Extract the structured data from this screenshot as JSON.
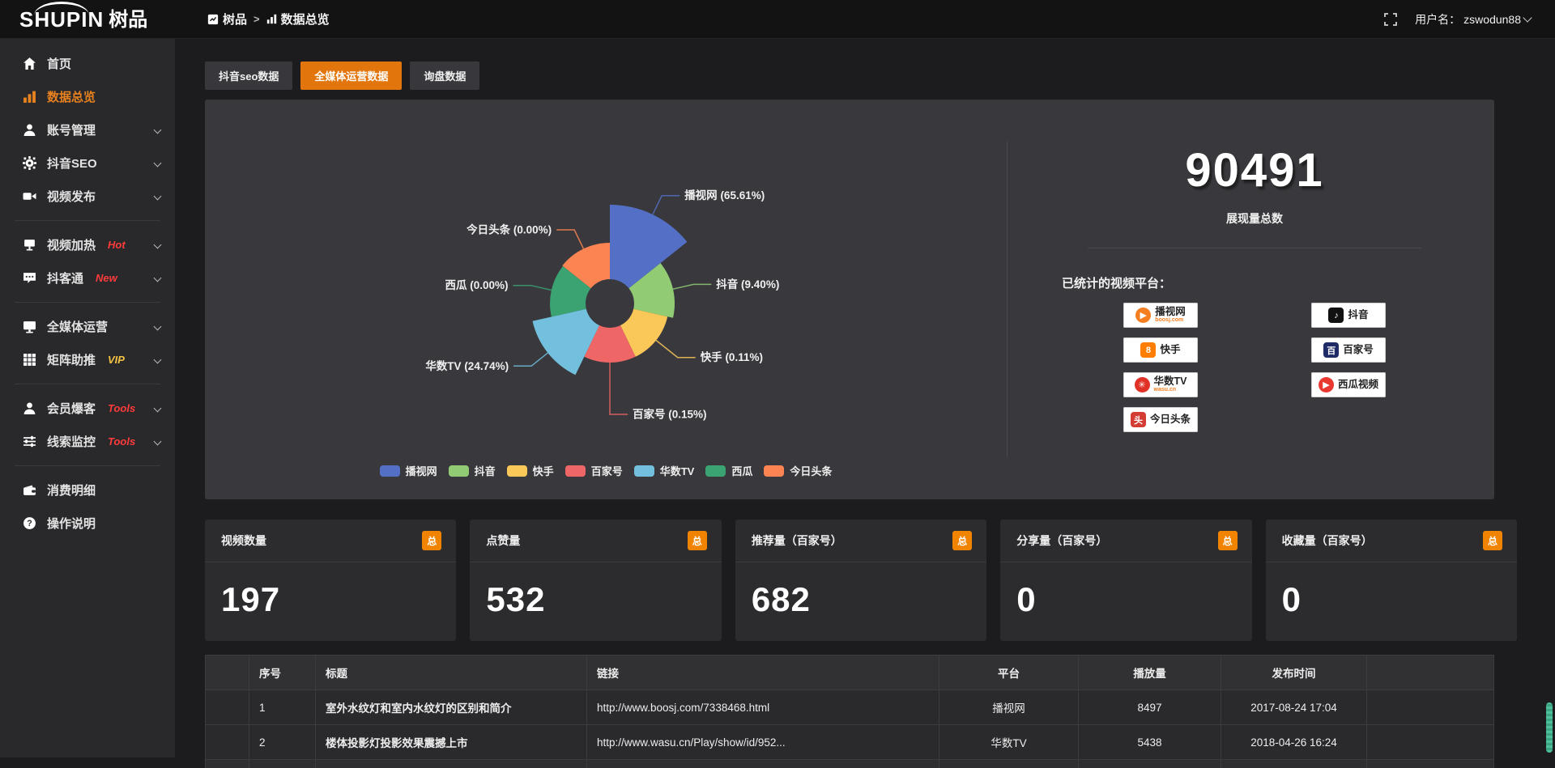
{
  "colors": {
    "accent_orange": "#e2760d",
    "badge_orange": "#f08300",
    "link_orange": "#ee7d1a",
    "hot_red": "#ff3b3b",
    "vip_yellow": "#f7c244",
    "panel_bg": "#39393d",
    "topbar_bg": "#131314",
    "sidebar_bg": "#29292c"
  },
  "topbar": {
    "logo_brand": "SHUPIN",
    "logo_cn": "树品",
    "breadcrumb": {
      "root": "树品",
      "separator": ">",
      "current": "数据总览"
    },
    "username_label": "用户名：",
    "username": "zswodun88"
  },
  "sidebar": {
    "items": [
      {
        "label": "首页",
        "icon": "home",
        "active": false,
        "chevron": false,
        "badge": ""
      },
      {
        "label": "数据总览",
        "icon": "chart",
        "active": true,
        "chevron": false,
        "badge": ""
      },
      {
        "label": "账号管理",
        "icon": "user",
        "active": false,
        "chevron": true,
        "badge": ""
      },
      {
        "label": "抖音SEO",
        "icon": "gear",
        "active": false,
        "chevron": true,
        "badge": ""
      },
      {
        "label": "视频发布",
        "icon": "camera",
        "active": false,
        "chevron": true,
        "badge": "",
        "divider_after": true
      },
      {
        "label": "视频加热",
        "icon": "heat",
        "active": false,
        "chevron": true,
        "badge": "Hot",
        "badge_color": "#ff3b3b"
      },
      {
        "label": "抖客通",
        "icon": "bubble",
        "active": false,
        "chevron": true,
        "badge": "New",
        "badge_color": "#ff3b3b",
        "divider_after": true
      },
      {
        "label": "全媒体运营",
        "icon": "monitor",
        "active": false,
        "chevron": true,
        "badge": ""
      },
      {
        "label": "矩阵助推",
        "icon": "grid",
        "active": false,
        "chevron": true,
        "badge": "VIP",
        "badge_color": "#f7c244",
        "divider_after": true
      },
      {
        "label": "会员爆客",
        "icon": "person",
        "active": false,
        "chevron": true,
        "badge": "Tools",
        "badge_color": "#ff3b3b"
      },
      {
        "label": "线索监控",
        "icon": "sliders",
        "active": false,
        "chevron": true,
        "badge": "Tools",
        "badge_color": "#ff3b3b",
        "divider_after": true
      },
      {
        "label": "消费明细",
        "icon": "wallet",
        "active": false,
        "chevron": false,
        "badge": ""
      },
      {
        "label": "操作说明",
        "icon": "question",
        "active": false,
        "chevron": false,
        "badge": ""
      }
    ]
  },
  "tabs": [
    {
      "label": "抖音seo数据",
      "active": false
    },
    {
      "label": "全媒体运营数据",
      "active": true
    },
    {
      "label": "询盘数据",
      "active": false
    }
  ],
  "chart_data": {
    "type": "pie",
    "variant": "nightingale-rose",
    "categories": [
      "播视网",
      "抖音",
      "快手",
      "百家号",
      "华数TV",
      "西瓜",
      "今日头条"
    ],
    "values": [
      65.61,
      9.4,
      0.11,
      0.15,
      24.74,
      0.0,
      0.0
    ],
    "unit": "%",
    "colors": [
      "#5470c6",
      "#91cc75",
      "#fac858",
      "#ee6666",
      "#73c0de",
      "#3ba272",
      "#fc8452"
    ],
    "legend_position": "bottom",
    "layout": {
      "center": [
        500,
        252
      ],
      "inner_radius": 30,
      "slice_radii": [
        122,
        80,
        73,
        73,
        98,
        74,
        75
      ],
      "label_ext": [
        26,
        26,
        34,
        64,
        26,
        26,
        26
      ],
      "start_angle_deg": 0
    }
  },
  "summary": {
    "total_value": "90491",
    "total_label": "展现量总数",
    "platforms_label": "已统计的视频平台：",
    "platform_columns": [
      [
        {
          "name": "播视网",
          "sub": "boosj.com",
          "icon": "boosj",
          "glyph": "▶"
        },
        {
          "name": "快手",
          "sub": "",
          "icon": "kuaishou",
          "glyph": "8"
        },
        {
          "name": "华数TV",
          "sub": "wasu.cn",
          "icon": "wasu",
          "glyph": "✳"
        },
        {
          "name": "今日头条",
          "sub": "",
          "icon": "toutiao",
          "glyph": "头"
        }
      ],
      [
        {
          "name": "抖音",
          "sub": "",
          "icon": "douyin",
          "glyph": "♪"
        },
        {
          "name": "百家号",
          "sub": "",
          "icon": "baijia",
          "glyph": "百"
        },
        {
          "name": "西瓜视频",
          "sub": "",
          "icon": "xigua",
          "glyph": "▶"
        }
      ]
    ]
  },
  "stats": [
    {
      "label": "视频数量",
      "badge": "总",
      "value": "197"
    },
    {
      "label": "点赞量",
      "badge": "总",
      "value": "532"
    },
    {
      "label": "推荐量（百家号）",
      "badge": "总",
      "value": "682"
    },
    {
      "label": "分享量（百家号）",
      "badge": "总",
      "value": "0"
    },
    {
      "label": "收藏量（百家号）",
      "badge": "总",
      "value": "0"
    }
  ],
  "table": {
    "columns": [
      "",
      "序号",
      "标题",
      "链接",
      "平台",
      "播放量",
      "发布时间",
      ""
    ],
    "rows": [
      {
        "checked": false,
        "index": "1",
        "title": "室外水纹灯和室内水纹灯的区别和简介",
        "link": "http://www.boosj.com/7338468.html",
        "platform": "播视网",
        "plays": "8497",
        "published": "2017-08-24 17:04"
      },
      {
        "checked": false,
        "index": "2",
        "title": "楼体投影灯投影效果震撼上市",
        "link": "http://www.wasu.cn/Play/show/id/952...",
        "platform": "华数TV",
        "plays": "5438",
        "published": "2018-04-26 16:24"
      }
    ]
  }
}
